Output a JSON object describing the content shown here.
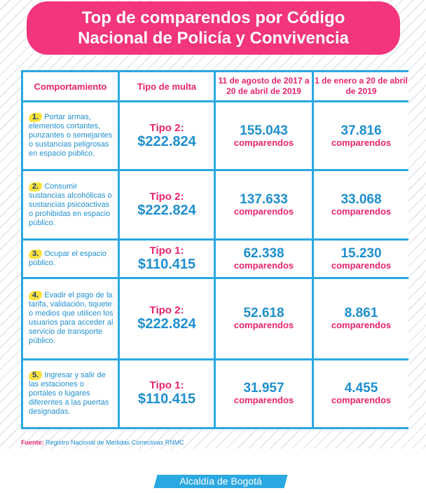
{
  "title": {
    "line1": "Top de comparendos por Código",
    "line2": "Nacional de Policía y Convivencia"
  },
  "table": {
    "headers": {
      "comportamiento": "Comportamiento",
      "tipo": "Tipo de multa",
      "period1": "11 de agosto de 2017 a 20 de abril de 2019",
      "period2": "1 de enero a 20 de abril de 2019"
    },
    "rows": [
      {
        "num": "1.",
        "behavior": "Portar armas, elementos cortantes, punzantes o semejantes o sustancias peligrosas en espacio público.",
        "tipo": "Tipo 2:",
        "amount": "$222.824",
        "count1": "155.043",
        "count2": "37.816",
        "unit": "comparendos"
      },
      {
        "num": "2.",
        "behavior": "Consumir sustancias alcohólicas o sustancias psicoactivas o prohibidas en espacio público.",
        "tipo": "Tipo 2:",
        "amount": "$222.824",
        "count1": "137.633",
        "count2": "33.068",
        "unit": "comparendos"
      },
      {
        "num": "3.",
        "behavior": "Ocupar el espacio público.",
        "tipo": "Tipo 1:",
        "amount": "$110.415",
        "count1": "62.338",
        "count2": "15.230",
        "unit": "comparendos"
      },
      {
        "num": "4.",
        "behavior": "Evadir el pago de la tarifa, validación, tiquete o medios que utilicen los usuarios para acceder al servicio de transporte público.",
        "tipo": "Tipo 2:",
        "amount": "$222.824",
        "count1": "52.618",
        "count2": "8.861",
        "unit": "comparendos"
      },
      {
        "num": "5.",
        "behavior": "Ingresar y salir de las estaciones o portales o lugares diferentes a las puertas designadas.",
        "tipo": "Tipo 1:",
        "amount": "$110.415",
        "count1": "31.957",
        "count2": "4.455",
        "unit": "comparendos"
      }
    ]
  },
  "source": {
    "label": "Fuente:",
    "text": "Registro Nacional de Medidas Correctivas RNMC"
  },
  "brand": "Alcaldía de Bogotá",
  "colors": {
    "pink": "#f2357c",
    "blue": "#2aa8e1",
    "yellow": "#fbe33f"
  }
}
